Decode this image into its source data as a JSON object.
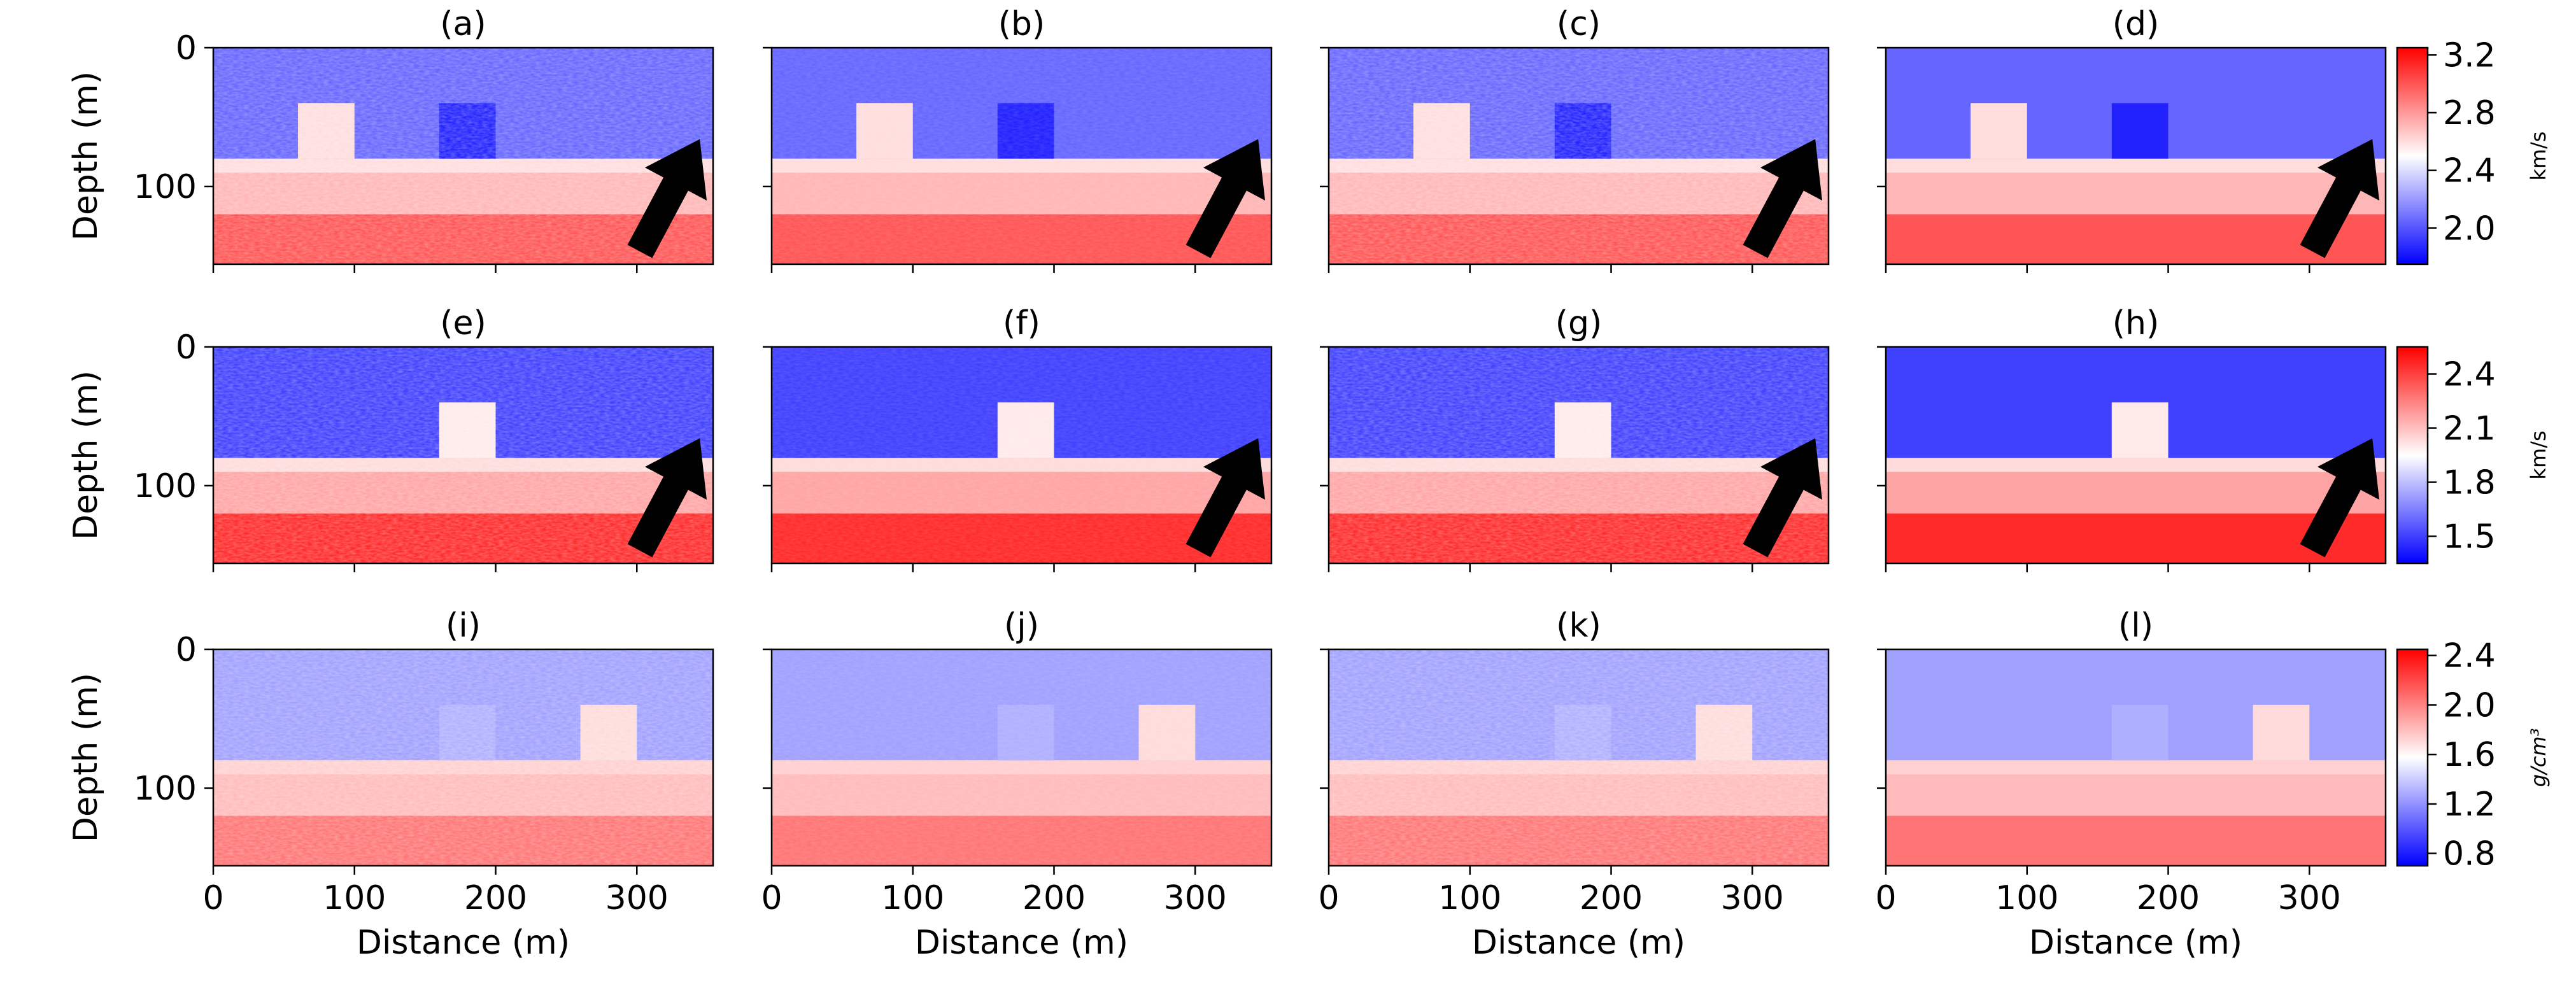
{
  "chart_data": {
    "type": "heatmap",
    "layout": {
      "rows": 3,
      "cols": 4
    },
    "xlabel": "Distance (m)",
    "ylabel": "Depth (m)",
    "xlim": [
      0,
      354
    ],
    "ylim": [
      156,
      0
    ],
    "xticks": [
      0,
      100,
      200,
      300
    ],
    "yticks": [
      0,
      100
    ],
    "colormap": [
      "#0000ff",
      "#ffffff",
      "#ff0000"
    ],
    "rows": [
      {
        "panels": [
          "(a)",
          "(b)",
          "(c)",
          "(d)"
        ],
        "colorbar": {
          "label": "km/s",
          "range": [
            1.75,
            3.25
          ],
          "ticks": [
            "3.2",
            "2.8",
            "2.4",
            "2.0"
          ],
          "tick_values": [
            3.2,
            2.8,
            2.4,
            2.0
          ]
        },
        "arrow": true,
        "background": {
          "top_layer": 2.05,
          "layer_boundary_depth": 80,
          "deep_layer": 3.0,
          "deep_boundary_depth": 120
        },
        "inclusions": [
          {
            "x": [
              60,
              100
            ],
            "y": [
              40,
              80
            ],
            "value": 2.6
          },
          {
            "x": [
              160,
              200
            ],
            "y": [
              40,
              80
            ],
            "value": 1.85
          }
        ]
      },
      {
        "panels": [
          "(e)",
          "(f)",
          "(g)",
          "(h)"
        ],
        "colorbar": {
          "label": "km/s",
          "range": [
            1.35,
            2.55
          ],
          "ticks": [
            "2.4",
            "2.1",
            "1.8",
            "1.5"
          ],
          "tick_values": [
            2.4,
            2.1,
            1.8,
            1.5
          ]
        },
        "arrow": true,
        "background": {
          "top_layer": 1.5,
          "layer_boundary_depth": 80,
          "deep_layer": 2.45,
          "deep_boundary_depth": 120
        },
        "inclusions": [
          {
            "x": [
              160,
              200
            ],
            "y": [
              40,
              80
            ],
            "value": 2.0
          }
        ]
      },
      {
        "panels": [
          "(i)",
          "(j)",
          "(k)",
          "(l)"
        ],
        "colorbar": {
          "label": "g/cm³",
          "range": [
            0.7,
            2.45
          ],
          "ticks": [
            "2.4",
            "2.0",
            "1.6",
            "1.2",
            "0.8"
          ],
          "tick_values": [
            2.4,
            2.0,
            1.6,
            1.2,
            0.8
          ]
        },
        "arrow": false,
        "background": {
          "top_layer": 1.25,
          "layer_boundary_depth": 80,
          "deep_layer": 2.05,
          "deep_boundary_depth": 120
        },
        "inclusions": [
          {
            "x": [
              160,
              200
            ],
            "y": [
              40,
              80
            ],
            "value": 1.3
          },
          {
            "x": [
              260,
              300
            ],
            "y": [
              40,
              80
            ],
            "value": 1.7
          }
        ]
      }
    ]
  }
}
